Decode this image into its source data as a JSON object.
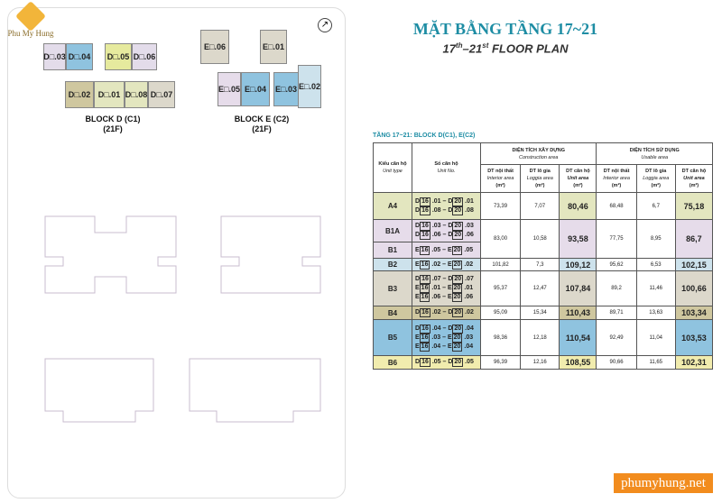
{
  "logo": {
    "text": "Phu My Hung"
  },
  "title": "MẶT BẰNG TẦNG 17~21",
  "subtitle": {
    "a": "17",
    "a_sup": "th",
    "b": "–21",
    "b_sup": "st",
    "c": " FLOOR PLAN"
  },
  "blocks": [
    {
      "label": "BLOCK D (C1)",
      "floors": "(21F)"
    },
    {
      "label": "BLOCK E (C2)",
      "floors": "(21F)"
    }
  ],
  "plan_units": [
    "D□.03",
    "D□.04",
    "D□.05",
    "D□.06",
    "D□.02",
    "D□.01",
    "D□.08",
    "D□.07",
    "E□.06",
    "E□.01",
    "E□.02",
    "E□.05",
    "E□.04",
    "E□.03"
  ],
  "table_title": "TẦNG 17~21: BLOCK D(C1), E(C2)",
  "headers": {
    "unit_type": "Kiểu căn hộ",
    "unit_type_en": "Unit type",
    "unit_no": "Số căn hộ",
    "unit_no_en": "Unit No.",
    "construction": "DIỆN TÍCH XÂY DỰNG",
    "construction_en": "Construction area",
    "usable": "DIỆN TÍCH SỬ DỤNG",
    "usable_en": "Usable area",
    "interior": "DT nội thất",
    "interior_en": "Interior area",
    "loggia": "DT lô gia",
    "loggia_en": "Loggia area",
    "unit_area": "DT căn hộ",
    "unit_area_en": "Unit area",
    "unit": "(m²)"
  },
  "rows": [
    {
      "type": "A4",
      "color": "#e3e6bf",
      "units": [
        [
          "D",
          "16",
          "20",
          ".01"
        ],
        [
          "D",
          "16",
          "20",
          ".08"
        ]
      ],
      "c": [
        "73,39",
        "7,07",
        "80,46"
      ],
      "u": [
        "68,48",
        "6,7",
        "75,18"
      ]
    },
    {
      "type": "B1A",
      "color": "#e6dcea",
      "units": [
        [
          "D",
          "16",
          "20",
          ".03"
        ],
        [
          "D",
          "16",
          "20",
          ".06"
        ]
      ],
      "c": [
        "83,00",
        "10,58",
        "93,58"
      ],
      "u": [
        "77,75",
        "8,95",
        "86,7"
      ],
      "span": 2
    },
    {
      "type": "B1",
      "color": "#e6dcea",
      "units": [
        [
          "E",
          "16",
          "20",
          ".05"
        ]
      ],
      "merged": true
    },
    {
      "type": "B2",
      "color": "#cde2ec",
      "units": [
        [
          "E",
          "16",
          "20",
          ".02"
        ]
      ],
      "c": [
        "101,82",
        "7,3",
        "109,12"
      ],
      "u": [
        "95,62",
        "6,53",
        "102,15"
      ]
    },
    {
      "type": "B3",
      "color": "#dcd8cb",
      "units": [
        [
          "D",
          "16",
          "20",
          ".07"
        ],
        [
          "E",
          "16",
          "20",
          ".01"
        ],
        [
          "E",
          "16",
          "20",
          ".06"
        ]
      ],
      "c": [
        "95,37",
        "12,47",
        "107,84"
      ],
      "u": [
        "89,2",
        "11,46",
        "100,66"
      ]
    },
    {
      "type": "B4",
      "color": "#cfc79f",
      "units": [
        [
          "D",
          "16",
          "20",
          ".02"
        ]
      ],
      "c": [
        "95,09",
        "15,34",
        "110,43"
      ],
      "u": [
        "89,71",
        "13,63",
        "103,34"
      ]
    },
    {
      "type": "B5",
      "color": "#8fc3df",
      "units": [
        [
          "D",
          "16",
          "20",
          ".04"
        ],
        [
          "E",
          "16",
          "20",
          ".03"
        ],
        [
          "E",
          "16",
          "20",
          ".04"
        ]
      ],
      "c": [
        "98,36",
        "12,18",
        "110,54"
      ],
      "u": [
        "92,49",
        "11,04",
        "103,53"
      ]
    },
    {
      "type": "B6",
      "color": "#f1ecae",
      "units": [
        [
          "D",
          "16",
          "20",
          ".05"
        ]
      ],
      "c": [
        "96,39",
        "12,16",
        "108,55"
      ],
      "u": [
        "90,66",
        "11,65",
        "102,31"
      ]
    }
  ],
  "watermark": "phumyhung.net"
}
